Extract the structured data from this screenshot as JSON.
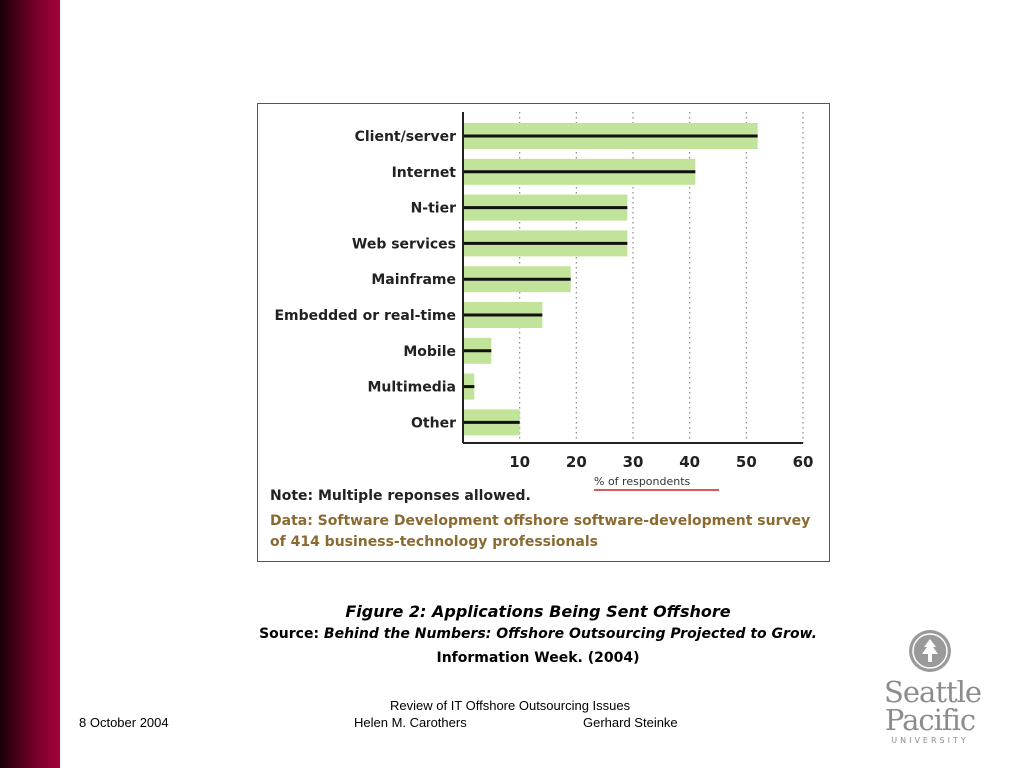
{
  "chart_data": {
    "type": "bar",
    "orientation": "horizontal",
    "categories": [
      "Client/server",
      "Internet",
      "N-tier",
      "Web services",
      "Mainframe",
      "Embedded or real-time",
      "Mobile",
      "Multimedia",
      "Other"
    ],
    "values": [
      52,
      41,
      29,
      29,
      19,
      14,
      5,
      2,
      10
    ],
    "xticks": [
      10,
      20,
      30,
      40,
      50,
      60
    ],
    "xlim": [
      0,
      60
    ],
    "xlabel": "% of respondents",
    "grid": "vertical-dotted",
    "bar_color": "#c2e39a",
    "bar_line_color": "#111111",
    "xlabel_underline_color": "#cc2222",
    "note": "Note: Multiple reponses allowed.",
    "source_line1": "Data: Software Development offshore software-development survey",
    "source_line2": "of 414 business-technology professionals"
  },
  "caption": {
    "title": "Figure 2: Applications Being Sent Offshore",
    "source_prefix": "Source:",
    "source_italic": "Behind the Numbers: Offshore Outsourcing Projected to Grow.",
    "info": "Information Week. (2004)"
  },
  "footer": {
    "date": "8 October 2004",
    "title": "Review of IT Offshore Outsourcing Issues",
    "author1": "Helen M. Carothers",
    "author2": "Gerhard Steinke"
  },
  "logo": {
    "line1": "Seattle",
    "line2": "Pacific",
    "line3": "UNIVERSITY",
    "color": "#8c8c8c"
  },
  "theme": {
    "sidebar_color": "#8a0030"
  }
}
